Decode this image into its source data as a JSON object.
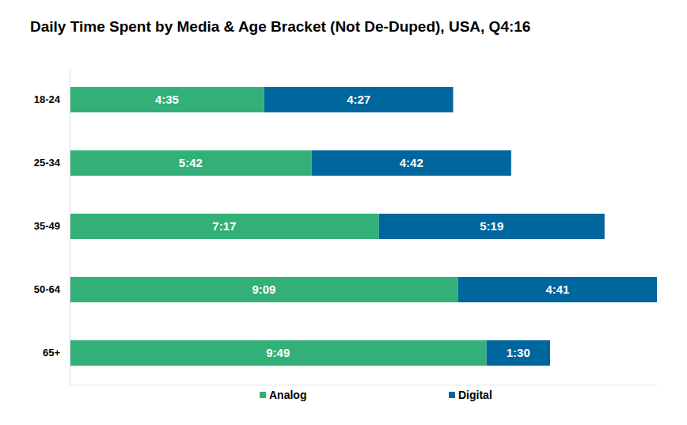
{
  "chart_data": {
    "type": "bar",
    "title": "Daily Time Spent by Media & Age Bracket (Not De-Duped), USA, Q4:16",
    "orientation": "horizontal",
    "stacked": true,
    "data_labels": true,
    "tick_labels": "y",
    "legend": "bottom",
    "categories": [
      "18-24",
      "25-34",
      "35-49",
      "50-64",
      "65+"
    ],
    "xlim": [
      0,
      830
    ],
    "series": [
      {
        "name": "Analog",
        "color": "#33b077",
        "values": [
          275,
          342,
          437,
          549,
          589
        ],
        "value_labels": [
          "4:35",
          "5:42",
          "7:17",
          "9:09",
          "9:49"
        ]
      },
      {
        "name": "Digital",
        "color": "#00669e",
        "values": [
          267,
          282,
          319,
          281,
          90
        ],
        "value_labels": [
          "4:27",
          "4:42",
          "5:19",
          "4:41",
          "1:30"
        ]
      }
    ]
  }
}
